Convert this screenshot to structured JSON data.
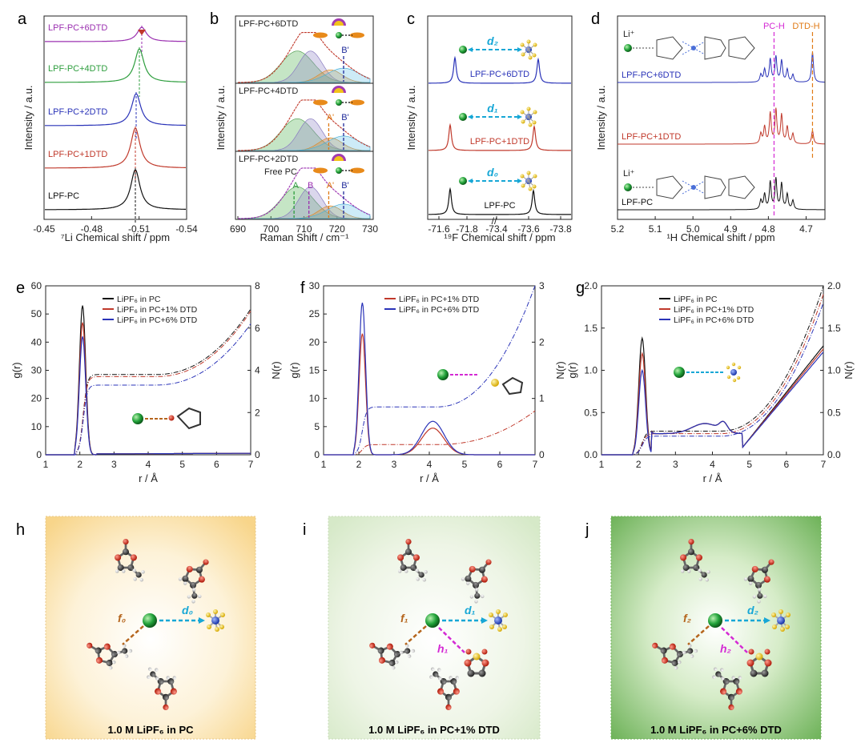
{
  "panel_letters": [
    "a",
    "b",
    "c",
    "d",
    "e",
    "f",
    "g",
    "h",
    "i",
    "j"
  ],
  "colors": {
    "black": "#111111",
    "red": "#c0392b",
    "green": "#2e9e3e",
    "blue": "#2a33b8",
    "purple": "#9b30b0",
    "cyan": "#17a7d6",
    "orange": "#e07b17",
    "magenta": "#d42ad4",
    "brown": "#b5651d",
    "li_green": "#22a33a",
    "p_blue": "#1f4fd0",
    "f_yellow": "#f1c40f"
  },
  "panel_a": {
    "xlabel": "⁷Li Chemical shift / ppm",
    "ylabel": "Intensity / a.u.",
    "xticks": [
      "-0.45",
      "-0.48",
      "-0.51",
      "-0.54"
    ],
    "traces": [
      {
        "label": "LPF-PC+6DTD",
        "color": "purple"
      },
      {
        "label": "LPF-PC+4DTD",
        "color": "green"
      },
      {
        "label": "LPF-PC+2DTD",
        "color": "blue"
      },
      {
        "label": "LPF-PC+1DTD",
        "color": "red"
      },
      {
        "label": "LPF-PC",
        "color": "black"
      }
    ]
  },
  "panel_b": {
    "xlabel": "Raman Shift / cm⁻¹",
    "ylabel": "Intensity / a.u.",
    "xticks": [
      "690",
      "700",
      "710",
      "720",
      "730"
    ],
    "subpanels": [
      {
        "label": "LPF-PC+6DTD",
        "peak_labels": [
          "B'"
        ]
      },
      {
        "label": "LPF-PC+4DTD",
        "peak_labels": [
          "A'",
          "B'"
        ]
      },
      {
        "label": "LPF-PC+2DTD",
        "peak_labels": [
          "A",
          "B",
          "A'",
          "B'"
        ],
        "annotation": "Free PC"
      }
    ]
  },
  "panel_c": {
    "xlabel": "¹⁹F Chemical shift / ppm",
    "ylabel": "Intensity / a.u.",
    "xticks": [
      "-71.6",
      "-71.8",
      "-73.4",
      "-73.6",
      "-73.8"
    ],
    "traces": [
      {
        "label": "LPF-PC+6DTD",
        "color": "blue",
        "distance": "d₂"
      },
      {
        "label": "LPF-PC+1DTD",
        "color": "red",
        "distance": "d₁"
      },
      {
        "label": "LPF-PC",
        "color": "black",
        "distance": "d₀"
      }
    ]
  },
  "panel_d": {
    "xlabel": "¹H Chemical shift / ppm",
    "ylabel": "Intensity / a.u.",
    "xticks": [
      "5.2",
      "5.1",
      "5.0",
      "4.9",
      "4.8",
      "4.7"
    ],
    "markers": [
      "PC-H",
      "DTD-H"
    ],
    "ion_label": "Li⁺",
    "traces": [
      {
        "label": "LPF-PC+6DTD",
        "color": "blue"
      },
      {
        "label": "LPF-PC+1DTD",
        "color": "red"
      },
      {
        "label": "LPF-PC",
        "color": "black"
      }
    ]
  },
  "legend_rdf": [
    "LiPF₆ in PC",
    "LiPF₆ in PC+1% DTD",
    "LiPF₆ in PC+6% DTD"
  ],
  "legend_rdf_f": [
    "LiPF₆ in PC+1% DTD",
    "LiPF₆ in PC+6% DTD"
  ],
  "chart_data": [
    {
      "panel": "e",
      "type": "line",
      "xlabel": "r / Å",
      "ylabel": "g(r)",
      "y2label": "N(r)",
      "xlim": [
        1,
        7
      ],
      "ylim": [
        0,
        60
      ],
      "y2lim": [
        0,
        8
      ],
      "xticks": [
        1,
        2,
        3,
        4,
        5,
        6,
        7
      ],
      "yticks": [
        0,
        10,
        20,
        30,
        40,
        50,
        60
      ],
      "y2ticks": [
        0,
        2,
        4,
        6,
        8
      ],
      "series": [
        {
          "name": "LiPF₆ in PC",
          "color": "black",
          "peak_x": 2.08,
          "peak_y": 53,
          "n_plateau": 3.8,
          "n_end": 6.9
        },
        {
          "name": "LiPF₆ in PC+1% DTD",
          "color": "red",
          "peak_x": 2.08,
          "peak_y": 47,
          "n_plateau": 3.7,
          "n_end": 6.8
        },
        {
          "name": "LiPF₆ in PC+6% DTD",
          "color": "blue",
          "peak_x": 2.08,
          "peak_y": 42,
          "n_plateau": 3.3,
          "n_end": 6.2
        }
      ]
    },
    {
      "panel": "f",
      "type": "line",
      "xlabel": "r / Å",
      "ylabel": "g(r)",
      "y2label": "N(r)",
      "xlim": [
        1,
        7
      ],
      "ylim": [
        0,
        30
      ],
      "y2lim": [
        0,
        3
      ],
      "xticks": [
        1,
        2,
        3,
        4,
        5,
        6,
        7
      ],
      "yticks": [
        0,
        5,
        10,
        15,
        20,
        25,
        30
      ],
      "y2ticks": [
        0,
        1,
        2,
        3
      ],
      "series": [
        {
          "name": "LiPF₆ in PC+1% DTD",
          "color": "red",
          "peak_x": 2.1,
          "peak_y": 21.5,
          "n_plateau": 0.18,
          "n_end": 0.78
        },
        {
          "name": "LiPF₆ in PC+6% DTD",
          "color": "blue",
          "peak_x": 2.1,
          "peak_y": 27,
          "n_plateau": 0.85,
          "n_end": 3.0
        }
      ]
    },
    {
      "panel": "g",
      "type": "line",
      "xlabel": "r / Å",
      "ylabel": "g(r)",
      "y2label": "N(r)",
      "xlim": [
        1,
        7
      ],
      "ylim": [
        0,
        2.0
      ],
      "y2lim": [
        0,
        2.0
      ],
      "xticks": [
        1,
        2,
        3,
        4,
        5,
        6,
        7
      ],
      "yticks": [
        0.0,
        0.5,
        1.0,
        1.5,
        2.0
      ],
      "y2ticks": [
        0.0,
        0.5,
        1.0,
        1.5,
        2.0
      ],
      "series": [
        {
          "name": "LiPF₆ in PC",
          "color": "black",
          "peak_x": 2.1,
          "peak_y": 1.38,
          "n_plateau": 0.28,
          "n_end": 2.0
        },
        {
          "name": "LiPF₆ in PC+1% DTD",
          "color": "red",
          "peak_x": 2.1,
          "peak_y": 1.2,
          "n_plateau": 0.25,
          "n_end": 1.9
        },
        {
          "name": "LiPF₆ in PC+6% DTD",
          "color": "blue",
          "peak_x": 2.1,
          "peak_y": 1.0,
          "n_plateau": 0.22,
          "n_end": 1.8
        }
      ]
    }
  ],
  "panel_h": {
    "caption": "1.0 M LiPF₆ in PC",
    "labels": [
      "f₀",
      "d₀"
    ]
  },
  "panel_i": {
    "caption": "1.0 M LiPF₆ in PC+1% DTD",
    "labels": [
      "f₁",
      "d₁",
      "h₁"
    ]
  },
  "panel_j": {
    "caption": "1.0 M LiPF₆ in PC+6% DTD",
    "labels": [
      "f₂",
      "d₂",
      "h₂"
    ]
  }
}
